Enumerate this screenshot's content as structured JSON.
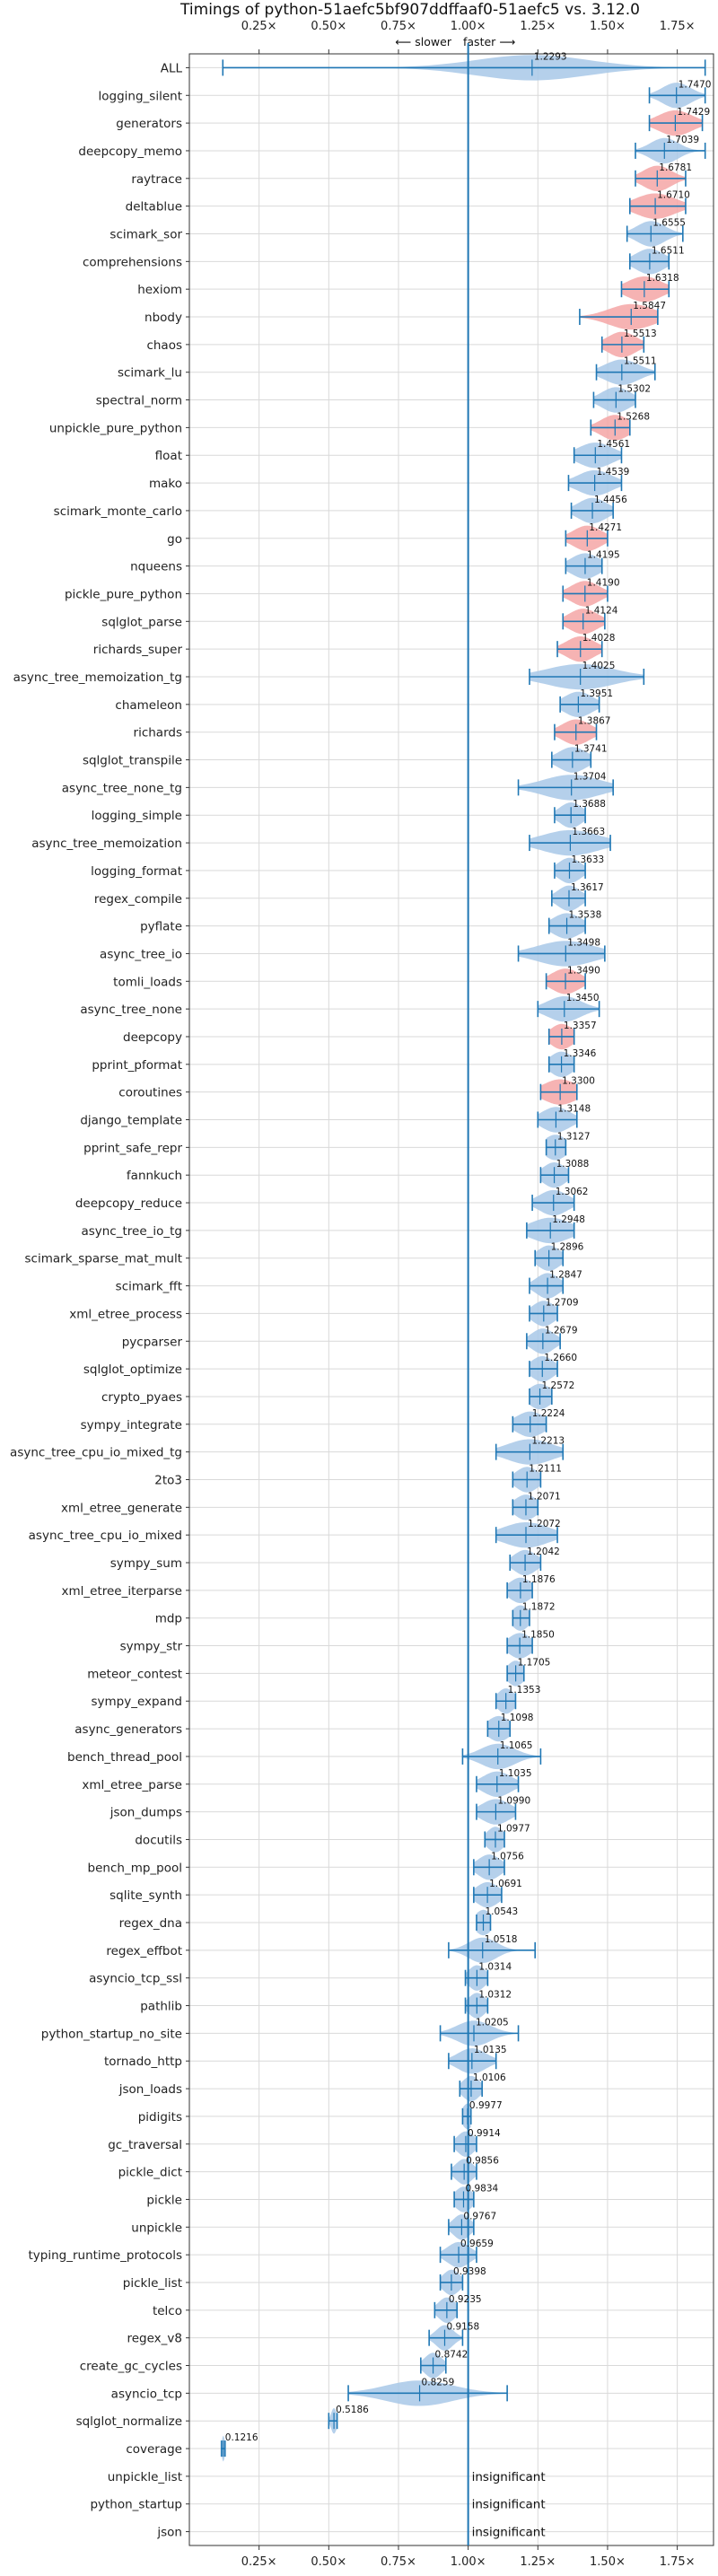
{
  "chart_data": {
    "type": "violin",
    "title": "Timings of python-51aefc5bf907ddffaaf0-51aefc5 vs. 3.12.0",
    "direction_labels": [
      "⟵ slower",
      "faster ⟶"
    ],
    "xlim": [
      0.0,
      1.88
    ],
    "xticks": [
      0.25,
      0.5,
      0.75,
      1.0,
      1.25,
      1.5,
      1.75
    ],
    "xtick_labels": [
      "0.25×",
      "0.50×",
      "0.75×",
      "1.00×",
      "1.25×",
      "1.50×",
      "1.75×"
    ],
    "reference_line": 1.0,
    "grid": true,
    "colors": {
      "normal": "#1f77b4",
      "violin_fill": "#a8c8e8",
      "highlight_fill": "#f4a6a6",
      "grid": "#d9d9d9"
    },
    "insignificant_label": "insignificant",
    "benchmarks": [
      {
        "name": "ALL",
        "value": 1.2293,
        "min": 0.12,
        "max": 1.85,
        "spread": 0.2,
        "hl": false
      },
      {
        "name": "logging_silent",
        "value": 1.747,
        "min": 1.65,
        "max": 1.85,
        "spread": 0.05,
        "hl": false
      },
      {
        "name": "generators",
        "value": 1.7429,
        "min": 1.65,
        "max": 1.84,
        "spread": 0.06,
        "hl": true
      },
      {
        "name": "deepcopy_memo",
        "value": 1.7039,
        "min": 1.6,
        "max": 1.85,
        "spread": 0.05,
        "hl": false
      },
      {
        "name": "raytrace",
        "value": 1.6781,
        "min": 1.6,
        "max": 1.78,
        "spread": 0.05,
        "hl": true
      },
      {
        "name": "deltablue",
        "value": 1.671,
        "min": 1.58,
        "max": 1.78,
        "spread": 0.07,
        "hl": true
      },
      {
        "name": "scimark_sor",
        "value": 1.6555,
        "min": 1.57,
        "max": 1.77,
        "spread": 0.05,
        "hl": false
      },
      {
        "name": "comprehensions",
        "value": 1.6511,
        "min": 1.58,
        "max": 1.72,
        "spread": 0.05,
        "hl": false
      },
      {
        "name": "hexiom",
        "value": 1.6318,
        "min": 1.55,
        "max": 1.72,
        "spread": 0.06,
        "hl": true
      },
      {
        "name": "nbody",
        "value": 1.5847,
        "min": 1.4,
        "max": 1.68,
        "spread": 0.08,
        "hl": true
      },
      {
        "name": "chaos",
        "value": 1.5513,
        "min": 1.48,
        "max": 1.63,
        "spread": 0.05,
        "hl": true
      },
      {
        "name": "scimark_lu",
        "value": 1.5511,
        "min": 1.46,
        "max": 1.67,
        "spread": 0.06,
        "hl": false
      },
      {
        "name": "spectral_norm",
        "value": 1.5302,
        "min": 1.45,
        "max": 1.6,
        "spread": 0.05,
        "hl": false
      },
      {
        "name": "unpickle_pure_python",
        "value": 1.5268,
        "min": 1.44,
        "max": 1.58,
        "spread": 0.05,
        "hl": true
      },
      {
        "name": "float",
        "value": 1.4561,
        "min": 1.38,
        "max": 1.55,
        "spread": 0.06,
        "hl": false
      },
      {
        "name": "mako",
        "value": 1.4539,
        "min": 1.36,
        "max": 1.55,
        "spread": 0.06,
        "hl": false
      },
      {
        "name": "scimark_monte_carlo",
        "value": 1.4456,
        "min": 1.37,
        "max": 1.52,
        "spread": 0.05,
        "hl": false
      },
      {
        "name": "go",
        "value": 1.4271,
        "min": 1.35,
        "max": 1.5,
        "spread": 0.05,
        "hl": true
      },
      {
        "name": "nqueens",
        "value": 1.4195,
        "min": 1.35,
        "max": 1.48,
        "spread": 0.05,
        "hl": false
      },
      {
        "name": "pickle_pure_python",
        "value": 1.419,
        "min": 1.34,
        "max": 1.5,
        "spread": 0.05,
        "hl": true
      },
      {
        "name": "sqlglot_parse",
        "value": 1.4124,
        "min": 1.34,
        "max": 1.49,
        "spread": 0.05,
        "hl": true
      },
      {
        "name": "richards_super",
        "value": 1.4028,
        "min": 1.32,
        "max": 1.48,
        "spread": 0.05,
        "hl": true
      },
      {
        "name": "async_tree_memoization_tg",
        "value": 1.4025,
        "min": 1.22,
        "max": 1.63,
        "spread": 0.12,
        "hl": false
      },
      {
        "name": "chameleon",
        "value": 1.3951,
        "min": 1.33,
        "max": 1.47,
        "spread": 0.05,
        "hl": false
      },
      {
        "name": "richards",
        "value": 1.3867,
        "min": 1.31,
        "max": 1.46,
        "spread": 0.05,
        "hl": true
      },
      {
        "name": "sqlglot_transpile",
        "value": 1.3741,
        "min": 1.3,
        "max": 1.44,
        "spread": 0.05,
        "hl": false
      },
      {
        "name": "async_tree_none_tg",
        "value": 1.3704,
        "min": 1.18,
        "max": 1.52,
        "spread": 0.1,
        "hl": false
      },
      {
        "name": "logging_simple",
        "value": 1.3688,
        "min": 1.31,
        "max": 1.42,
        "spread": 0.04,
        "hl": false
      },
      {
        "name": "async_tree_memoization",
        "value": 1.3663,
        "min": 1.22,
        "max": 1.51,
        "spread": 0.1,
        "hl": false
      },
      {
        "name": "logging_format",
        "value": 1.3633,
        "min": 1.31,
        "max": 1.42,
        "spread": 0.04,
        "hl": false
      },
      {
        "name": "regex_compile",
        "value": 1.3617,
        "min": 1.3,
        "max": 1.42,
        "spread": 0.04,
        "hl": false
      },
      {
        "name": "pyflate",
        "value": 1.3538,
        "min": 1.29,
        "max": 1.42,
        "spread": 0.05,
        "hl": false
      },
      {
        "name": "async_tree_io",
        "value": 1.3498,
        "min": 1.18,
        "max": 1.49,
        "spread": 0.1,
        "hl": false
      },
      {
        "name": "tomli_loads",
        "value": 1.349,
        "min": 1.28,
        "max": 1.42,
        "spread": 0.05,
        "hl": true
      },
      {
        "name": "async_tree_none",
        "value": 1.345,
        "min": 1.25,
        "max": 1.47,
        "spread": 0.06,
        "hl": false
      },
      {
        "name": "deepcopy",
        "value": 1.3357,
        "min": 1.29,
        "max": 1.38,
        "spread": 0.04,
        "hl": true
      },
      {
        "name": "pprint_pformat",
        "value": 1.3346,
        "min": 1.29,
        "max": 1.38,
        "spread": 0.04,
        "hl": false
      },
      {
        "name": "coroutines",
        "value": 1.33,
        "min": 1.26,
        "max": 1.39,
        "spread": 0.06,
        "hl": true
      },
      {
        "name": "django_template",
        "value": 1.3148,
        "min": 1.25,
        "max": 1.39,
        "spread": 0.05,
        "hl": false
      },
      {
        "name": "pprint_safe_repr",
        "value": 1.3127,
        "min": 1.28,
        "max": 1.35,
        "spread": 0.04,
        "hl": false
      },
      {
        "name": "fannkuch",
        "value": 1.3088,
        "min": 1.26,
        "max": 1.36,
        "spread": 0.04,
        "hl": false
      },
      {
        "name": "deepcopy_reduce",
        "value": 1.3062,
        "min": 1.23,
        "max": 1.38,
        "spread": 0.05,
        "hl": false
      },
      {
        "name": "async_tree_io_tg",
        "value": 1.2948,
        "min": 1.21,
        "max": 1.38,
        "spread": 0.07,
        "hl": false
      },
      {
        "name": "scimark_sparse_mat_mult",
        "value": 1.2896,
        "min": 1.24,
        "max": 1.34,
        "spread": 0.04,
        "hl": false
      },
      {
        "name": "scimark_fft",
        "value": 1.2847,
        "min": 1.22,
        "max": 1.34,
        "spread": 0.04,
        "hl": false
      },
      {
        "name": "xml_etree_process",
        "value": 1.2709,
        "min": 1.22,
        "max": 1.32,
        "spread": 0.04,
        "hl": false
      },
      {
        "name": "pycparser",
        "value": 1.2679,
        "min": 1.21,
        "max": 1.33,
        "spread": 0.04,
        "hl": false
      },
      {
        "name": "sqlglot_optimize",
        "value": 1.266,
        "min": 1.22,
        "max": 1.32,
        "spread": 0.04,
        "hl": false
      },
      {
        "name": "crypto_pyaes",
        "value": 1.2572,
        "min": 1.22,
        "max": 1.3,
        "spread": 0.04,
        "hl": false
      },
      {
        "name": "sympy_integrate",
        "value": 1.2224,
        "min": 1.16,
        "max": 1.28,
        "spread": 0.05,
        "hl": false
      },
      {
        "name": "async_tree_cpu_io_mixed_tg",
        "value": 1.2213,
        "min": 1.1,
        "max": 1.34,
        "spread": 0.08,
        "hl": false
      },
      {
        "name": "2to3",
        "value": 1.2111,
        "min": 1.16,
        "max": 1.26,
        "spread": 0.04,
        "hl": false
      },
      {
        "name": "xml_etree_generate",
        "value": 1.2071,
        "min": 1.16,
        "max": 1.25,
        "spread": 0.04,
        "hl": false
      },
      {
        "name": "async_tree_cpu_io_mixed",
        "value": 1.2072,
        "min": 1.1,
        "max": 1.32,
        "spread": 0.08,
        "hl": false
      },
      {
        "name": "sympy_sum",
        "value": 1.2042,
        "min": 1.15,
        "max": 1.26,
        "spread": 0.04,
        "hl": false
      },
      {
        "name": "xml_etree_iterparse",
        "value": 1.1876,
        "min": 1.14,
        "max": 1.23,
        "spread": 0.04,
        "hl": false
      },
      {
        "name": "mdp",
        "value": 1.1872,
        "min": 1.16,
        "max": 1.22,
        "spread": 0.03,
        "hl": false
      },
      {
        "name": "sympy_str",
        "value": 1.185,
        "min": 1.14,
        "max": 1.23,
        "spread": 0.04,
        "hl": false
      },
      {
        "name": "meteor_contest",
        "value": 1.1705,
        "min": 1.14,
        "max": 1.2,
        "spread": 0.03,
        "hl": false
      },
      {
        "name": "sympy_expand",
        "value": 1.1353,
        "min": 1.1,
        "max": 1.17,
        "spread": 0.03,
        "hl": false
      },
      {
        "name": "async_generators",
        "value": 1.1098,
        "min": 1.07,
        "max": 1.15,
        "spread": 0.04,
        "hl": false
      },
      {
        "name": "bench_thread_pool",
        "value": 1.1065,
        "min": 0.98,
        "max": 1.26,
        "spread": 0.06,
        "hl": false
      },
      {
        "name": "xml_etree_parse",
        "value": 1.1035,
        "min": 1.03,
        "max": 1.18,
        "spread": 0.05,
        "hl": false
      },
      {
        "name": "json_dumps",
        "value": 1.099,
        "min": 1.03,
        "max": 1.17,
        "spread": 0.05,
        "hl": false
      },
      {
        "name": "docutils",
        "value": 1.0977,
        "min": 1.06,
        "max": 1.13,
        "spread": 0.03,
        "hl": false
      },
      {
        "name": "bench_mp_pool",
        "value": 1.0756,
        "min": 1.02,
        "max": 1.13,
        "spread": 0.04,
        "hl": false
      },
      {
        "name": "sqlite_synth",
        "value": 1.0691,
        "min": 1.02,
        "max": 1.12,
        "spread": 0.04,
        "hl": false
      },
      {
        "name": "regex_dna",
        "value": 1.0543,
        "min": 1.03,
        "max": 1.08,
        "spread": 0.03,
        "hl": false
      },
      {
        "name": "regex_effbot",
        "value": 1.0518,
        "min": 0.93,
        "max": 1.24,
        "spread": 0.05,
        "hl": false
      },
      {
        "name": "asyncio_tcp_ssl",
        "value": 1.0314,
        "min": 0.99,
        "max": 1.07,
        "spread": 0.03,
        "hl": false
      },
      {
        "name": "pathlib",
        "value": 1.0312,
        "min": 0.99,
        "max": 1.07,
        "spread": 0.03,
        "hl": false
      },
      {
        "name": "python_startup_no_site",
        "value": 1.0205,
        "min": 0.9,
        "max": 1.18,
        "spread": 0.06,
        "hl": false
      },
      {
        "name": "tornado_http",
        "value": 1.0135,
        "min": 0.93,
        "max": 1.1,
        "spread": 0.05,
        "hl": false
      },
      {
        "name": "json_loads",
        "value": 1.0106,
        "min": 0.97,
        "max": 1.05,
        "spread": 0.03,
        "hl": false
      },
      {
        "name": "pidigits",
        "value": 0.9977,
        "min": 0.98,
        "max": 1.01,
        "spread": 0.02,
        "hl": false
      },
      {
        "name": "gc_traversal",
        "value": 0.9914,
        "min": 0.95,
        "max": 1.03,
        "spread": 0.03,
        "hl": false
      },
      {
        "name": "pickle_dict",
        "value": 0.9856,
        "min": 0.94,
        "max": 1.03,
        "spread": 0.03,
        "hl": false
      },
      {
        "name": "pickle",
        "value": 0.9834,
        "min": 0.95,
        "max": 1.02,
        "spread": 0.03,
        "hl": false
      },
      {
        "name": "unpickle",
        "value": 0.9767,
        "min": 0.93,
        "max": 1.02,
        "spread": 0.03,
        "hl": false
      },
      {
        "name": "typing_runtime_protocols",
        "value": 0.9659,
        "min": 0.9,
        "max": 1.03,
        "spread": 0.04,
        "hl": false
      },
      {
        "name": "pickle_list",
        "value": 0.9398,
        "min": 0.9,
        "max": 0.98,
        "spread": 0.03,
        "hl": false
      },
      {
        "name": "telco",
        "value": 0.9235,
        "min": 0.88,
        "max": 0.96,
        "spread": 0.03,
        "hl": false
      },
      {
        "name": "regex_v8",
        "value": 0.9158,
        "min": 0.86,
        "max": 0.98,
        "spread": 0.03,
        "hl": false
      },
      {
        "name": "create_gc_cycles",
        "value": 0.8742,
        "min": 0.83,
        "max": 0.92,
        "spread": 0.03,
        "hl": false
      },
      {
        "name": "asyncio_tcp",
        "value": 0.8259,
        "min": 0.57,
        "max": 1.14,
        "spread": 0.12,
        "hl": false
      },
      {
        "name": "sqlglot_normalize",
        "value": 0.5186,
        "min": 0.5,
        "max": 0.53,
        "spread": 0.01,
        "hl": false
      },
      {
        "name": "coverage",
        "value": 0.1216,
        "min": 0.115,
        "max": 0.128,
        "spread": 0.005,
        "hl": false
      },
      {
        "name": "unpickle_list",
        "value": null,
        "insignificant": true
      },
      {
        "name": "python_startup",
        "value": null,
        "insignificant": true
      },
      {
        "name": "json",
        "value": null,
        "insignificant": true
      }
    ]
  }
}
